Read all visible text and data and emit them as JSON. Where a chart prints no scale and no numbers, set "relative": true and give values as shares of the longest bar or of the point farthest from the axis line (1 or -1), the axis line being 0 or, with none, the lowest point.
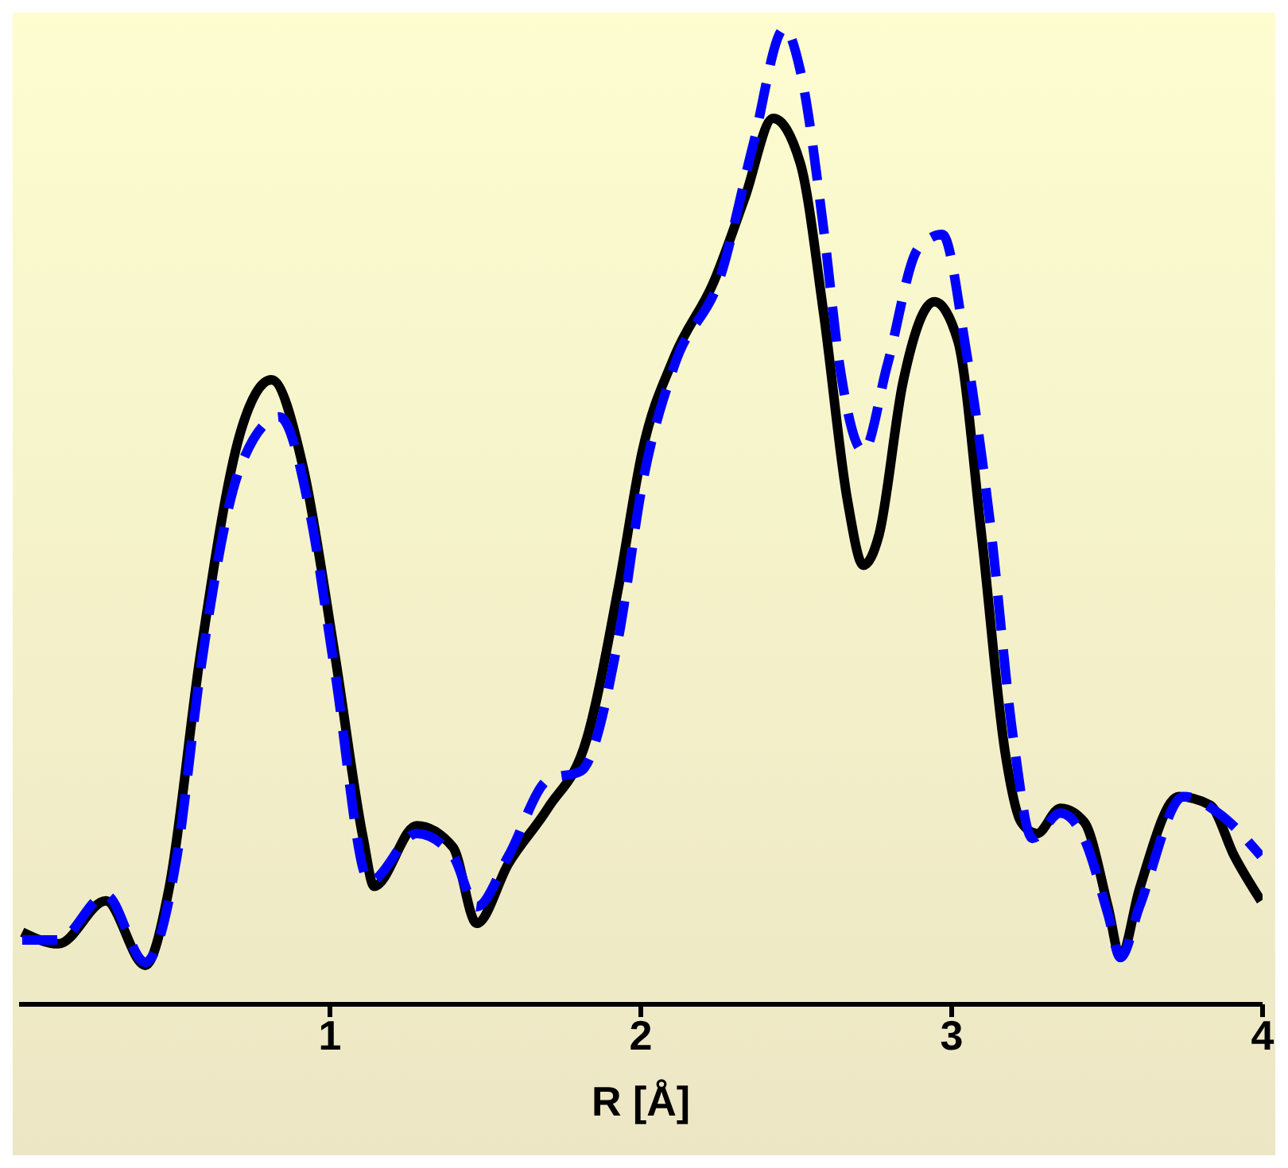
{
  "chart_data": {
    "type": "line",
    "xlabel": "R [Å]",
    "relative": true,
    "xlim": [
      0,
      4
    ],
    "xticks": [
      1,
      2,
      3,
      4
    ],
    "tick_labels": "x",
    "grid": false,
    "legend": false,
    "marker": "none",
    "series": [
      {
        "color": "#000000",
        "line_style": "solid",
        "x": [
          0.01,
          0.127,
          0.279,
          0.406,
          0.482,
          0.584,
          0.711,
          0.812,
          0.914,
          1.015,
          1.107,
          1.142,
          1.279,
          1.396,
          1.472,
          1.574,
          1.701,
          1.827,
          1.929,
          2.005,
          2.107,
          2.234,
          2.335,
          2.426,
          2.513,
          2.589,
          2.665,
          2.716,
          2.766,
          2.843,
          2.944,
          3.02,
          3.096,
          3.173,
          3.223,
          3.274,
          3.35,
          3.426,
          3.503,
          3.543,
          3.604,
          3.731,
          3.832,
          3.909,
          3.995
        ],
        "values": [
          0.074,
          0.062,
          0.106,
          0.04,
          0.118,
          0.36,
          0.585,
          0.64,
          0.55,
          0.36,
          0.17,
          0.121,
          0.183,
          0.161,
          0.083,
          0.144,
          0.201,
          0.273,
          0.429,
          0.567,
          0.663,
          0.74,
          0.827,
          0.908,
          0.862,
          0.706,
          0.516,
          0.45,
          0.481,
          0.637,
          0.72,
          0.68,
          0.481,
          0.256,
          0.187,
          0.175,
          0.201,
          0.187,
          0.1,
          0.048,
          0.118,
          0.213,
          0.204,
          0.152,
          0.106
        ]
      },
      {
        "color": "#0000ff",
        "line_style": "dashed",
        "x": [
          0.01,
          0.127,
          0.279,
          0.406,
          0.508,
          0.584,
          0.711,
          0.838,
          0.939,
          1.015,
          1.127,
          1.279,
          1.396,
          1.472,
          1.574,
          1.701,
          1.807,
          1.929,
          2.005,
          2.107,
          2.259,
          2.36,
          2.462,
          2.513,
          2.589,
          2.64,
          2.716,
          2.792,
          2.893,
          2.97,
          3.046,
          3.122,
          3.198,
          3.259,
          3.35,
          3.426,
          3.503,
          3.543,
          3.604,
          3.746,
          3.858,
          3.995
        ],
        "values": [
          0.066,
          0.066,
          0.112,
          0.043,
          0.152,
          0.343,
          0.55,
          0.602,
          0.498,
          0.343,
          0.126,
          0.175,
          0.152,
          0.1,
          0.152,
          0.23,
          0.239,
          0.377,
          0.533,
          0.654,
          0.749,
          0.879,
          1,
          0.957,
          0.792,
          0.654,
          0.567,
          0.654,
          0.775,
          0.789,
          0.671,
          0.498,
          0.273,
          0.17,
          0.196,
          0.17,
          0.092,
          0.048,
          0.1,
          0.213,
          0.196,
          0.152
        ]
      }
    ]
  }
}
